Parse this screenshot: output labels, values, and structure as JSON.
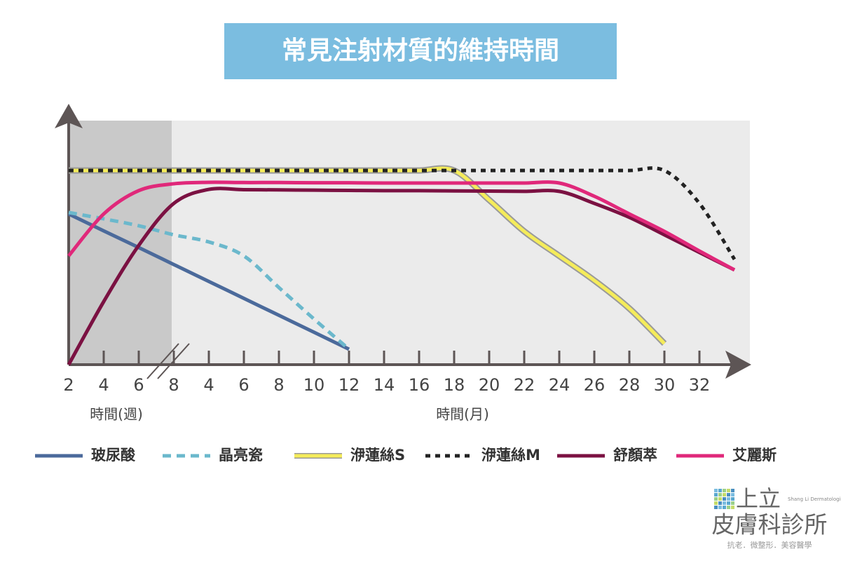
{
  "chart_data": {
    "type": "line",
    "title": "常見注射材質的維持時間",
    "categories": [
      "2",
      "4",
      "6",
      "8",
      "4",
      "6",
      "8",
      "10",
      "12",
      "14",
      "16",
      "18",
      "20",
      "22",
      "24",
      "26",
      "28",
      "30",
      "32",
      null
    ],
    "x_label_weeks": "時間(週)",
    "x_label_months": "時間(月)",
    "ylim": [
      0,
      100
    ],
    "series": [
      {
        "name": "玻尿酸",
        "color": "#4b6a9b",
        "style": "solid",
        "values": [
          61.4,
          54.5,
          47.7,
          40.8,
          33.9,
          27.0,
          20.1,
          13.2,
          6.3,
          null,
          null,
          null,
          null,
          null,
          null,
          null,
          null,
          null,
          null,
          null
        ]
      },
      {
        "name": "晶亮瓷",
        "color": "#6bb8cc",
        "style": "dashed",
        "values": [
          62.0,
          59.4,
          56.6,
          52.9,
          50.0,
          44.3,
          31.4,
          18.6,
          6.3,
          null,
          null,
          null,
          null,
          null,
          null,
          null,
          null,
          null,
          null,
          null
        ]
      },
      {
        "name": "洢蓮絲S",
        "color": "#f5ec5a",
        "style": "solid",
        "outline_color": "#9a9a9a",
        "values": [
          79.1,
          79.1,
          79.1,
          79.1,
          79.1,
          79.1,
          79.1,
          79.1,
          79.1,
          79.1,
          79.1,
          79.1,
          67.1,
          54.3,
          44.3,
          34.3,
          22.9,
          8.6,
          null,
          null
        ]
      },
      {
        "name": "洢蓮絲M",
        "color": "#222222",
        "style": "dotted",
        "values": [
          79.1,
          79.1,
          79.1,
          79.1,
          79.1,
          79.1,
          79.1,
          79.1,
          79.1,
          79.1,
          79.1,
          79.1,
          79.1,
          79.1,
          79.1,
          79.1,
          79.1,
          79.1,
          65.7,
          42.9
        ]
      },
      {
        "name": "舒顏萃",
        "color": "#7b1142",
        "style": "solid",
        "values": [
          0,
          25.7,
          48.6,
          65.7,
          71.4,
          71.3,
          71.2,
          71.1,
          71.0,
          70.9,
          70.9,
          70.8,
          70.7,
          70.6,
          70.6,
          65.7,
          60.0,
          52.9,
          45.7,
          38.6
        ]
      },
      {
        "name": "艾麗斯",
        "color": "#e0287a",
        "style": "solid",
        "values": [
          44.3,
          61.4,
          70.9,
          73.7,
          74.3,
          74.2,
          74.2,
          74.1,
          74.1,
          74.0,
          74.0,
          74.0,
          74.0,
          74.0,
          74.0,
          68.6,
          61.4,
          54.3,
          46.3,
          38.6
        ]
      }
    ]
  },
  "logo": {
    "name": "上立",
    "subtitle": "皮膚科診所",
    "english": "Shang Li Dermatologic & Aesthetic Clinic",
    "tagline": "抗老．微整形．美容醫學"
  }
}
